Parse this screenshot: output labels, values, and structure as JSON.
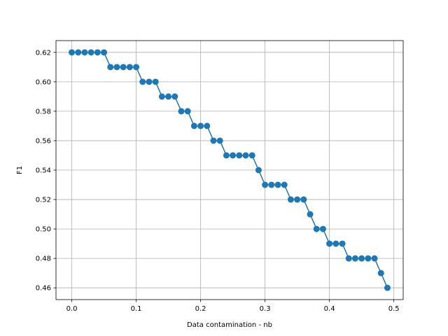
{
  "chart_data": {
    "type": "line",
    "title": "",
    "xlabel": "Data contamination - nb",
    "ylabel": "F1",
    "xlim": [
      -0.0245,
      0.5145
    ],
    "ylim": [
      0.452,
      0.628
    ],
    "xticks": [
      0.0,
      0.1,
      0.2,
      0.3,
      0.4,
      0.5
    ],
    "xtick_labels": [
      "0.0",
      "0.1",
      "0.2",
      "0.3",
      "0.4",
      "0.5"
    ],
    "yticks": [
      0.46,
      0.48,
      0.5,
      0.52,
      0.54,
      0.56,
      0.58,
      0.6,
      0.62
    ],
    "ytick_labels": [
      "0.46",
      "0.48",
      "0.50",
      "0.52",
      "0.54",
      "0.56",
      "0.58",
      "0.60",
      "0.62"
    ],
    "grid": true,
    "legend": "none",
    "markers": true,
    "series": [
      {
        "color": "#1f77b4",
        "x": [
          0.0,
          0.01,
          0.02,
          0.03,
          0.04,
          0.05,
          0.06,
          0.07,
          0.08,
          0.09,
          0.1,
          0.11,
          0.12,
          0.13,
          0.14,
          0.15,
          0.16,
          0.17,
          0.18,
          0.19,
          0.2,
          0.21,
          0.22,
          0.23,
          0.24,
          0.25,
          0.26,
          0.27,
          0.28,
          0.29,
          0.3,
          0.31,
          0.32,
          0.33,
          0.34,
          0.35,
          0.36,
          0.37,
          0.38,
          0.39,
          0.4,
          0.41,
          0.42,
          0.43,
          0.44,
          0.45,
          0.46,
          0.47,
          0.48,
          0.49
        ],
        "y": [
          0.62,
          0.62,
          0.62,
          0.62,
          0.62,
          0.62,
          0.61,
          0.61,
          0.61,
          0.61,
          0.61,
          0.6,
          0.6,
          0.6,
          0.59,
          0.59,
          0.59,
          0.58,
          0.58,
          0.57,
          0.57,
          0.57,
          0.56,
          0.56,
          0.55,
          0.55,
          0.55,
          0.55,
          0.55,
          0.54,
          0.53,
          0.53,
          0.53,
          0.53,
          0.52,
          0.52,
          0.52,
          0.51,
          0.5,
          0.5,
          0.49,
          0.49,
          0.49,
          0.48,
          0.48,
          0.48,
          0.48,
          0.48,
          0.47,
          0.46
        ]
      }
    ]
  }
}
